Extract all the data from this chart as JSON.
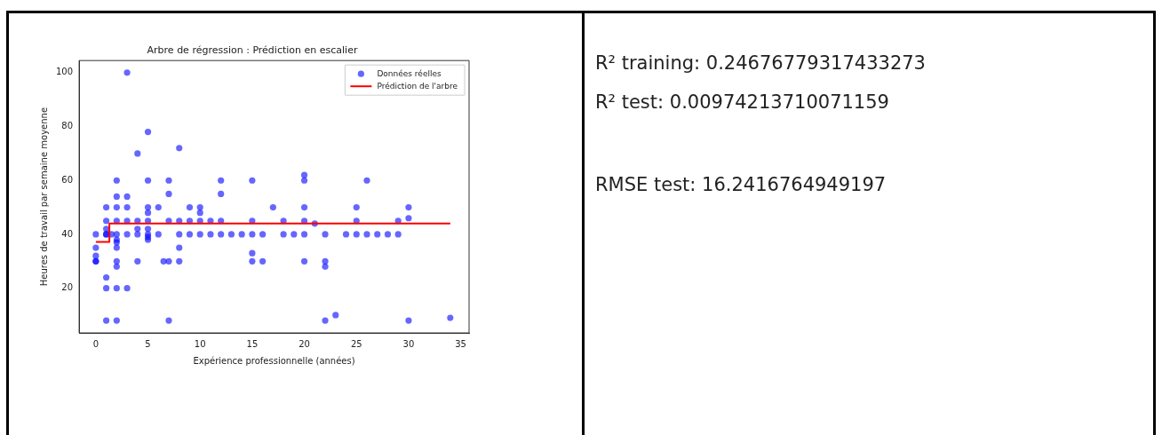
{
  "chart_data": {
    "type": "scatter",
    "title": "Arbre de régression : Prédiction en escalier",
    "xlabel": "Expérience professionnelle (années)",
    "ylabel": "Heures de travail par semaine moyenne",
    "xlim": [
      -1.6,
      35.8
    ],
    "ylim": [
      3.4,
      104.5
    ],
    "xticks": [
      0,
      5,
      10,
      15,
      20,
      25,
      30,
      35
    ],
    "yticks": [
      20,
      40,
      60,
      80,
      100
    ],
    "grid": false,
    "legend": "top right",
    "series": [
      {
        "name": "Données réelles",
        "marker": "circle",
        "color": "#0000ff",
        "x": [
          0,
          0,
          0,
          0,
          0,
          1,
          1,
          1,
          1,
          1,
          1,
          1,
          1,
          1.5,
          2,
          2,
          2,
          2,
          2,
          2,
          2,
          2,
          2,
          2,
          2,
          2,
          3,
          3,
          3,
          3,
          3,
          3,
          4,
          4,
          4,
          4,
          4,
          5,
          5,
          5,
          5,
          5,
          5,
          5,
          5,
          5,
          6,
          6,
          6.5,
          7,
          7,
          7,
          7,
          7,
          8,
          8,
          8,
          8,
          8,
          9,
          9,
          9,
          10,
          10,
          10,
          10,
          11,
          11,
          12,
          12,
          12,
          12,
          13,
          14,
          15,
          15,
          15,
          15,
          15,
          16,
          16,
          17,
          18,
          18,
          19,
          20,
          20,
          20,
          20,
          20,
          20,
          21,
          22,
          22,
          22,
          22,
          23,
          24,
          25,
          25,
          25,
          26,
          26,
          27,
          28,
          29,
          29,
          30,
          30,
          30,
          34
        ],
        "values": [
          40,
          35,
          32,
          30,
          30,
          50,
          45,
          42,
          40,
          40,
          24,
          20,
          8,
          40,
          60,
          54,
          50,
          45,
          40,
          38,
          37,
          35,
          30,
          28,
          20,
          8,
          100,
          54,
          50,
          45,
          40,
          20,
          70,
          45,
          42,
          40,
          30,
          78,
          60,
          50,
          48,
          45,
          42,
          40,
          39,
          38,
          50,
          40,
          30,
          60,
          55,
          45,
          30,
          8,
          72,
          45,
          40,
          35,
          30,
          50,
          45,
          40,
          50,
          48,
          45,
          40,
          45,
          40,
          60,
          55,
          45,
          40,
          40,
          40,
          60,
          45,
          40,
          33,
          30,
          40,
          30,
          50,
          45,
          40,
          40,
          62,
          60,
          50,
          45,
          40,
          30,
          44,
          40,
          30,
          28,
          8,
          10,
          40,
          50,
          45,
          40,
          60,
          40,
          40,
          40,
          45,
          40,
          50,
          46,
          8,
          9
        ]
      },
      {
        "name": "Prédiction de l'arbre",
        "type": "step",
        "color": "#ff0000",
        "x": [
          0,
          1.3,
          34
        ],
        "values": [
          37.2,
          44,
          44
        ]
      }
    ],
    "annotations": [
      "R² training: 0.24676779317433273",
      "R² test: 0.00974213710071159",
      "RMSE test: 16.2416764949197"
    ]
  }
}
